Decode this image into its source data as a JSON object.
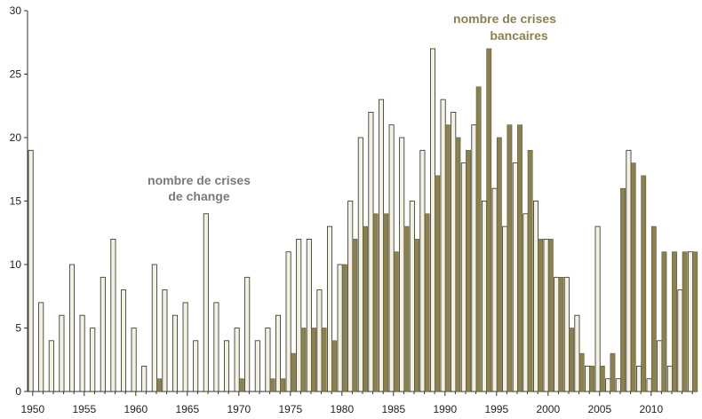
{
  "chart_data": {
    "type": "bar",
    "title": "",
    "xlabel": "",
    "ylabel": "",
    "ylim": [
      0,
      30
    ],
    "yticks": [
      "0",
      "5",
      "10",
      "15",
      "20",
      "25",
      "30"
    ],
    "xticks": [
      "1950",
      "1955",
      "1960",
      "1965",
      "1970",
      "1975",
      "1980",
      "1985",
      "1990",
      "1995",
      "2000",
      "2005",
      "2010"
    ],
    "grid": false,
    "legend": "none",
    "colors": {
      "currency_fill": "#f2f1e4",
      "currency_stroke": "#2b2b1e",
      "banking_fill": "#8a8050",
      "banking_stroke": "#5f5836",
      "currency_label": "#7a7a7a",
      "banking_label": "#8a8050"
    },
    "x": [
      1950,
      1951,
      1952,
      1953,
      1954,
      1955,
      1956,
      1957,
      1958,
      1959,
      1960,
      1961,
      1962,
      1963,
      1964,
      1965,
      1966,
      1967,
      1968,
      1969,
      1970,
      1971,
      1972,
      1973,
      1974,
      1975,
      1976,
      1977,
      1978,
      1979,
      1980,
      1981,
      1982,
      1983,
      1984,
      1985,
      1986,
      1987,
      1988,
      1989,
      1990,
      1991,
      1992,
      1993,
      1994,
      1995,
      1996,
      1997,
      1998,
      1999,
      2000,
      2001,
      2002,
      2003,
      2004,
      2005,
      2006,
      2007,
      2008,
      2009,
      2010,
      2011,
      2012,
      2013,
      2014
    ],
    "series": [
      {
        "key": "currency",
        "values": [
          19,
          7,
          4,
          6,
          10,
          6,
          5,
          9,
          12,
          8,
          5,
          2,
          10,
          8,
          6,
          7,
          4,
          14,
          7,
          4,
          5,
          9,
          4,
          5,
          6,
          11,
          12,
          12,
          8,
          13,
          10,
          15,
          20,
          22,
          23,
          21,
          20,
          15,
          19,
          27,
          23,
          22,
          18,
          21,
          15,
          16,
          13,
          18,
          14,
          15,
          12,
          9,
          9,
          6,
          2,
          13,
          1,
          1,
          19,
          2,
          1,
          4,
          2,
          8,
          11
        ]
      },
      {
        "key": "banking",
        "values": [
          0,
          0,
          0,
          0,
          0,
          0,
          0,
          0,
          0,
          0,
          0,
          0,
          1,
          0,
          0,
          0,
          0,
          0,
          0,
          0,
          1,
          0,
          0,
          1,
          1,
          3,
          5,
          5,
          5,
          4,
          10,
          12,
          13,
          14,
          14,
          11,
          13,
          12,
          14,
          17,
          21,
          20,
          19,
          24,
          27,
          20,
          21,
          21,
          19,
          12,
          12,
          9,
          5,
          3,
          2,
          2,
          3,
          16,
          18,
          17,
          13,
          11,
          11,
          11,
          11
        ]
      }
    ],
    "annotations": {
      "banking": [
        "nombre de crises",
        "bancaires"
      ],
      "currency": [
        "nombre de crises",
        "de change"
      ]
    }
  }
}
